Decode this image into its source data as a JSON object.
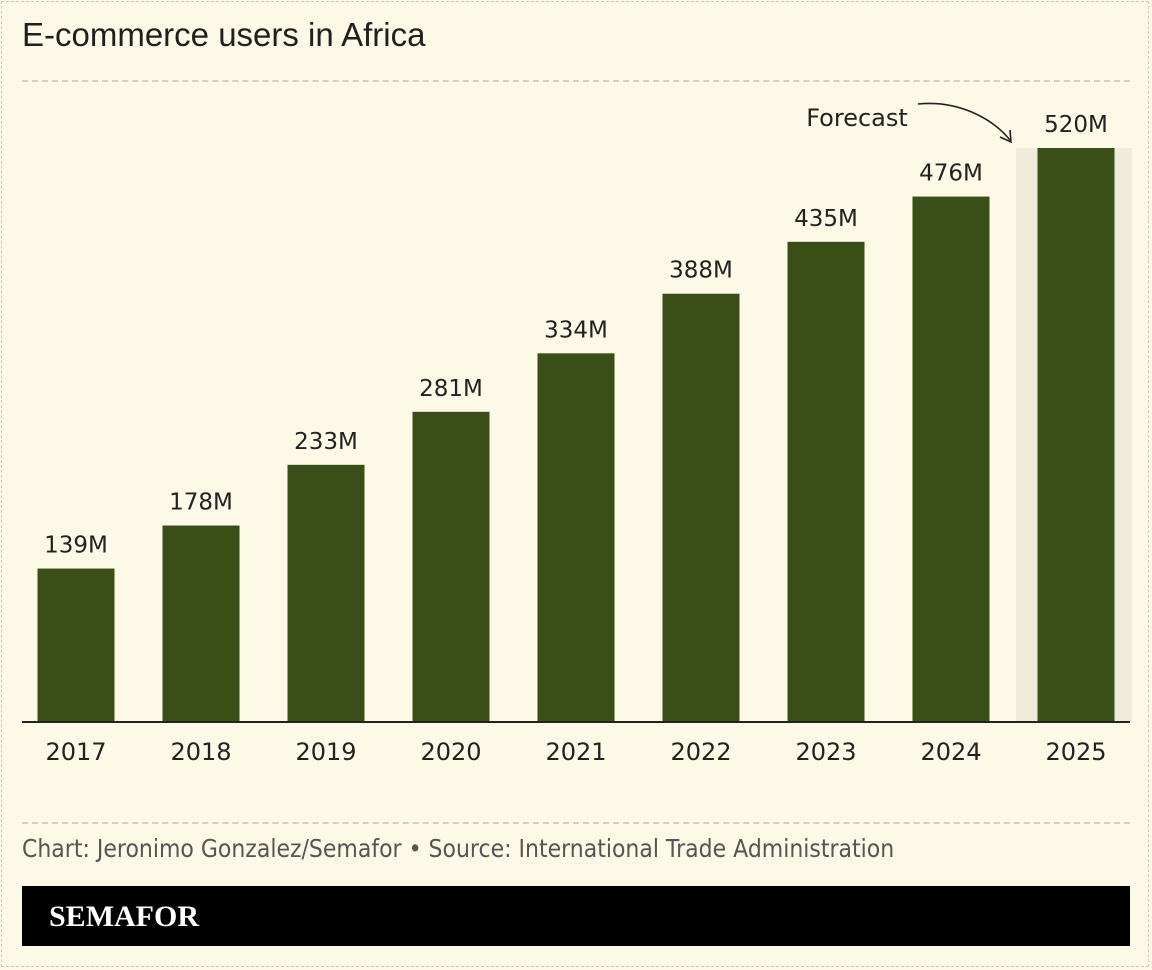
{
  "chart_data": {
    "type": "bar",
    "title": "E-commerce users in Africa",
    "categories": [
      "2017",
      "2018",
      "2019",
      "2020",
      "2021",
      "2022",
      "2023",
      "2024",
      "2025"
    ],
    "values": [
      139,
      178,
      233,
      281,
      334,
      388,
      435,
      476,
      520
    ],
    "value_labels": [
      "139M",
      "178M",
      "233M",
      "281M",
      "334M",
      "388M",
      "435M",
      "476M",
      "520M"
    ],
    "unit": "M",
    "xlabel": "",
    "ylabel": "",
    "ylim": [
      0,
      520
    ],
    "grid": false,
    "forecast_categories": [
      "2025"
    ],
    "annotation": "Forecast"
  },
  "footer": {
    "credit": "Chart: Jeronimo Gonzalez/Semafor • Source: International Trade Administration",
    "brand": "SEMAFOR"
  },
  "colors": {
    "background": "#fcf9e6",
    "bar": "#3a4f18",
    "forecast_band": "#efebd9",
    "axis": "#222222",
    "text": "#222222"
  }
}
